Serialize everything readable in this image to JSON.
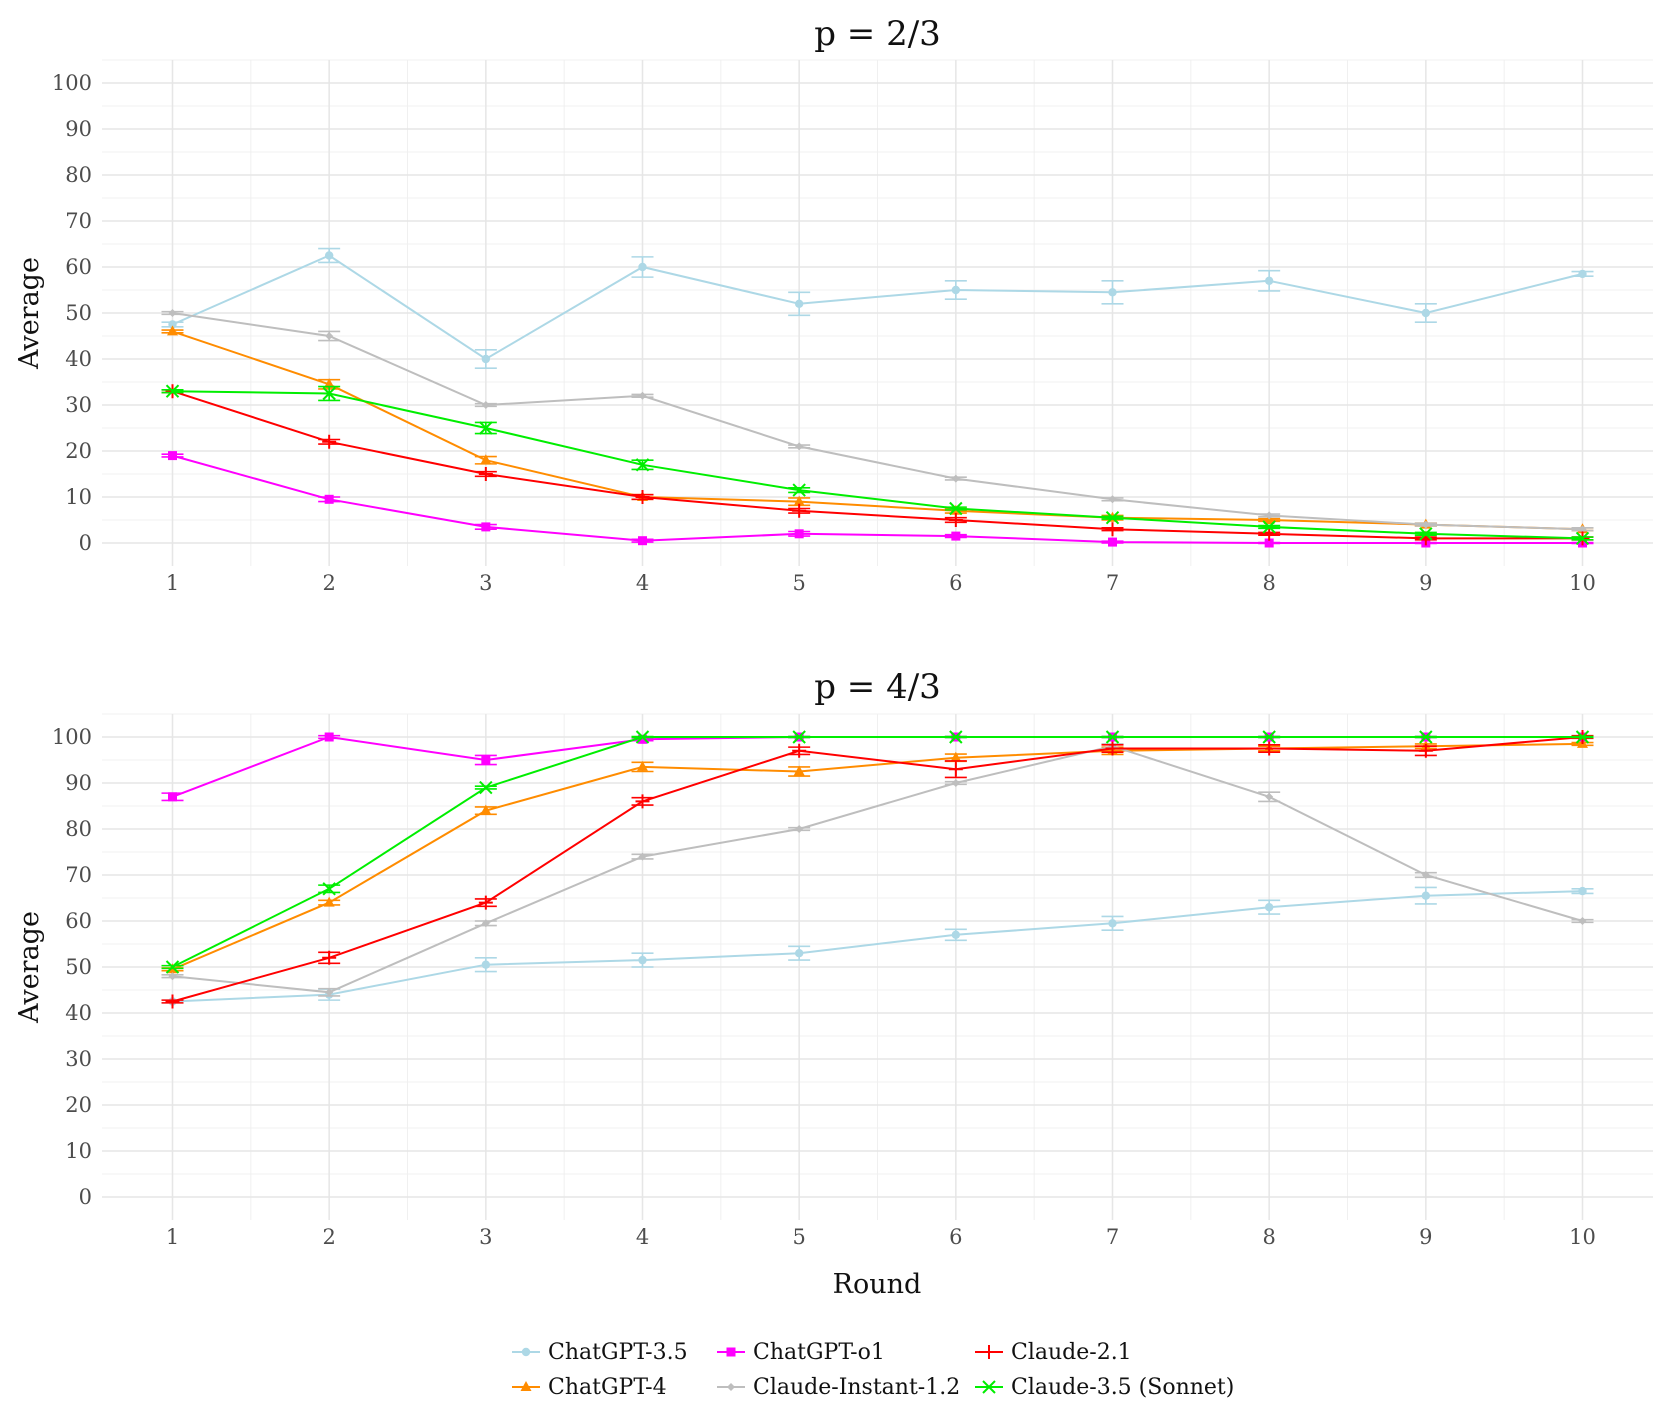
{
  "chart_data": [
    {
      "type": "line",
      "title": "p = 2/3",
      "xlabel": "",
      "ylabel": "Average",
      "x": [
        1,
        2,
        3,
        4,
        5,
        6,
        7,
        8,
        9,
        10
      ],
      "xlim": [
        0.55,
        10.45
      ],
      "ylim": [
        -5,
        105
      ],
      "yticks": [
        0,
        10,
        20,
        30,
        40,
        50,
        60,
        70,
        80,
        90,
        100
      ],
      "grid": true,
      "series": [
        {
          "name": "ChatGPT-3.5",
          "color": "#add8e6",
          "marker": "dot",
          "values": [
            47.5,
            62.5,
            40.0,
            60.0,
            52.0,
            55.0,
            54.5,
            57.0,
            50.0,
            58.5
          ],
          "errors": [
            0.5,
            1.5,
            2.0,
            2.2,
            2.5,
            2.0,
            2.5,
            2.2,
            2.0,
            0.5
          ]
        },
        {
          "name": "ChatGPT-4",
          "color": "#ff8c00",
          "marker": "triangle",
          "values": [
            46.0,
            34.5,
            18.0,
            10.0,
            9.0,
            7.0,
            5.5,
            5.0,
            4.0,
            3.0
          ],
          "errors": [
            0.3,
            1.0,
            0.8,
            0.5,
            0.8,
            0.5,
            0.5,
            0.3,
            0.3,
            0.3
          ]
        },
        {
          "name": "ChatGPT-o1",
          "color": "#ff00ff",
          "marker": "square",
          "values": [
            19.0,
            9.5,
            3.5,
            0.5,
            2.0,
            1.5,
            0.2,
            0.0,
            0.0,
            0.0
          ],
          "errors": [
            0.3,
            0.5,
            0.5,
            0.3,
            0.5,
            0.3,
            0.2,
            0.1,
            0.1,
            0.1
          ]
        },
        {
          "name": "Claude-Instant-1.2",
          "color": "#bebebe",
          "marker": "diamond",
          "values": [
            50.0,
            45.0,
            30.0,
            32.0,
            21.0,
            14.0,
            9.5,
            6.0,
            4.0,
            3.0
          ],
          "errors": [
            0.3,
            1.0,
            0.3,
            0.3,
            0.3,
            0.3,
            0.3,
            0.3,
            0.3,
            0.3
          ]
        },
        {
          "name": "Claude-2.1",
          "color": "#ff0000",
          "marker": "plus",
          "values": [
            33.0,
            22.0,
            15.0,
            10.0,
            7.0,
            5.0,
            3.0,
            2.0,
            1.0,
            1.0
          ],
          "errors": [
            0.3,
            0.5,
            0.5,
            0.5,
            0.5,
            0.5,
            0.3,
            0.3,
            0.3,
            0.3
          ]
        },
        {
          "name": "Claude-3.5 (Sonnet)",
          "color": "#00ee00",
          "marker": "cross",
          "values": [
            33.0,
            32.5,
            25.0,
            17.0,
            11.5,
            7.5,
            5.5,
            3.5,
            2.0,
            1.0
          ],
          "errors": [
            0.3,
            1.5,
            1.2,
            1.0,
            0.5,
            0.3,
            0.3,
            0.3,
            0.3,
            0.3
          ]
        }
      ]
    },
    {
      "type": "line",
      "title": "p = 4/3",
      "xlabel": "Round",
      "ylabel": "Average",
      "x": [
        1,
        2,
        3,
        4,
        5,
        6,
        7,
        8,
        9,
        10
      ],
      "xlim": [
        0.55,
        10.45
      ],
      "ylim": [
        -5,
        105
      ],
      "yticks": [
        0,
        10,
        20,
        30,
        40,
        50,
        60,
        70,
        80,
        90,
        100
      ],
      "grid": true,
      "series": [
        {
          "name": "ChatGPT-3.5",
          "color": "#add8e6",
          "marker": "dot",
          "values": [
            42.5,
            44.0,
            50.5,
            51.5,
            53.0,
            57.0,
            59.5,
            63.0,
            65.5,
            66.5
          ],
          "errors": [
            0.3,
            1.2,
            1.5,
            1.5,
            1.5,
            1.2,
            1.5,
            1.5,
            1.8,
            0.5
          ]
        },
        {
          "name": "ChatGPT-4",
          "color": "#ff8c00",
          "marker": "triangle",
          "values": [
            49.5,
            64.0,
            84.0,
            93.5,
            92.5,
            95.5,
            97.0,
            97.5,
            98.0,
            98.5
          ],
          "errors": [
            0.3,
            0.5,
            0.8,
            1.0,
            1.0,
            0.8,
            0.8,
            0.5,
            0.5,
            0.3
          ]
        },
        {
          "name": "ChatGPT-o1",
          "color": "#ff00ff",
          "marker": "square",
          "values": [
            87.0,
            100.0,
            95.0,
            99.5,
            100.0,
            100.0,
            100.0,
            100.0,
            100.0,
            100.0
          ],
          "errors": [
            0.8,
            0.3,
            1.0,
            0.3,
            0.1,
            0.1,
            0.1,
            0.1,
            0.1,
            0.1
          ]
        },
        {
          "name": "Claude-Instant-1.2",
          "color": "#bebebe",
          "marker": "diamond",
          "values": [
            48.0,
            44.5,
            59.5,
            74.0,
            80.0,
            90.0,
            98.0,
            87.0,
            70.0,
            60.0
          ],
          "errors": [
            0.3,
            0.8,
            0.5,
            0.5,
            0.3,
            0.3,
            0.5,
            1.0,
            0.5,
            0.3
          ]
        },
        {
          "name": "Claude-2.1",
          "color": "#ff0000",
          "marker": "plus",
          "values": [
            42.5,
            52.0,
            64.0,
            86.0,
            97.0,
            93.0,
            97.5,
            97.5,
            97.0,
            100.0
          ],
          "errors": [
            0.3,
            1.2,
            0.8,
            0.8,
            0.8,
            1.8,
            0.8,
            0.8,
            1.0,
            0.3
          ]
        },
        {
          "name": "Claude-3.5 (Sonnet)",
          "color": "#00ee00",
          "marker": "cross",
          "values": [
            50.0,
            67.0,
            89.0,
            100.0,
            100.0,
            100.0,
            100.0,
            100.0,
            100.0,
            100.0
          ],
          "errors": [
            0.3,
            0.8,
            0.3,
            0.1,
            0.1,
            0.1,
            0.1,
            0.1,
            0.1,
            0.1
          ]
        }
      ]
    }
  ],
  "legend": {
    "position": "bottom",
    "entries": [
      {
        "name": "ChatGPT-3.5",
        "color": "#add8e6",
        "marker": "dot"
      },
      {
        "name": "ChatGPT-o1",
        "color": "#ff00ff",
        "marker": "square"
      },
      {
        "name": "Claude-2.1",
        "color": "#ff0000",
        "marker": "plus"
      },
      {
        "name": "ChatGPT-4",
        "color": "#ff8c00",
        "marker": "triangle"
      },
      {
        "name": "Claude-Instant-1.2",
        "color": "#bebebe",
        "marker": "diamond"
      },
      {
        "name": "Claude-3.5 (Sonnet)",
        "color": "#00ee00",
        "marker": "cross"
      }
    ]
  }
}
